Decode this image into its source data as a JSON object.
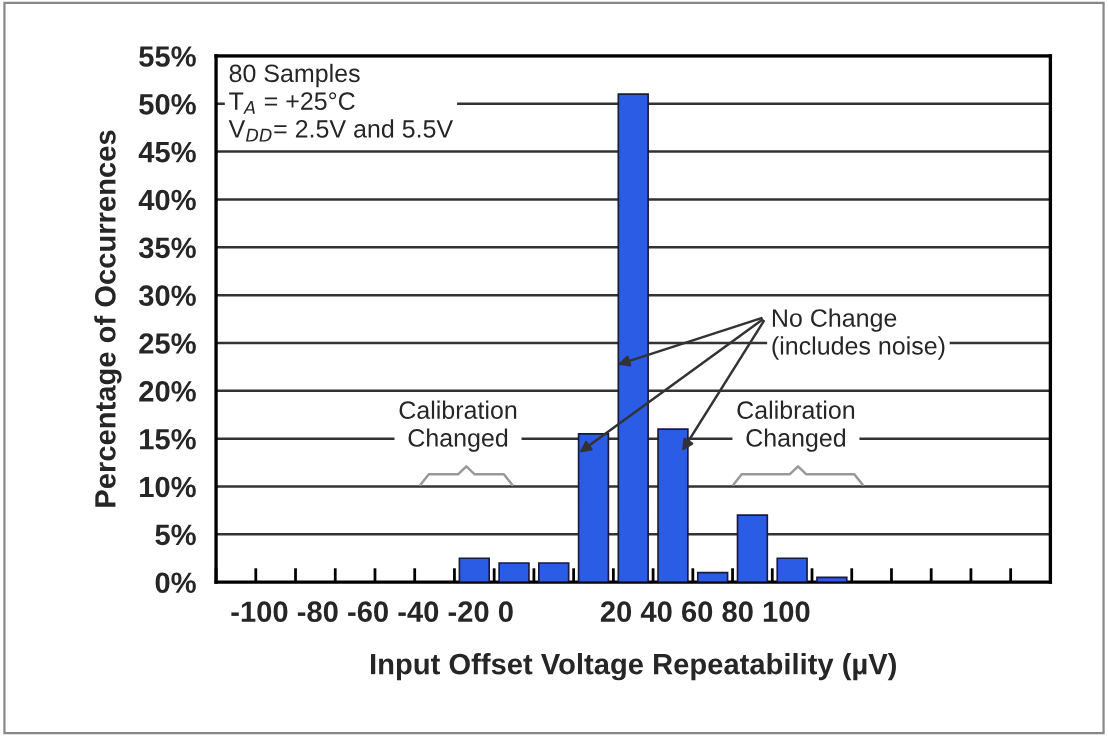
{
  "chart_data": {
    "type": "bar",
    "xlabel": "Input Offset Voltage Repeatability (µV)",
    "ylabel": "Percentage of Occurrences",
    "categories": [
      null,
      null,
      null,
      null,
      null,
      null,
      null,
      null,
      null,
      null,
      null,
      null,
      null,
      null,
      null,
      null,
      null,
      null,
      null,
      null,
      null
    ],
    "values": [
      null,
      null,
      null,
      null,
      null,
      null,
      2.5,
      2,
      2,
      15.5,
      51,
      16,
      1,
      7,
      2.5,
      0.5,
      null,
      null,
      null,
      null,
      null
    ],
    "color": "#2b5ce6",
    "ylim": [
      0,
      55
    ],
    "yticks": [
      {
        "value": 0,
        "label": "0%"
      },
      {
        "value": 5,
        "label": "5%"
      },
      {
        "value": 10,
        "label": "10%"
      },
      {
        "value": 15,
        "label": "15%"
      },
      {
        "value": 20,
        "label": "20%"
      },
      {
        "value": 25,
        "label": "25%"
      },
      {
        "value": 30,
        "label": "30%"
      },
      {
        "value": 35,
        "label": "35%"
      },
      {
        "value": 40,
        "label": "40%"
      },
      {
        "value": 45,
        "label": "45%"
      },
      {
        "value": 50,
        "label": "50%"
      },
      {
        "value": 55,
        "label": "55%"
      }
    ],
    "grid": "y",
    "annotations": [
      "-100 -80 -60 -40 -20 0",
      "20 40 60 80 100",
      "80 Samples\nT$_{A}$ = +25°C\nV$_{DD}$= 2.5V and 5.5V",
      "No Change\n(includes noise)",
      "Calibration\nChanged",
      "Calibration\nChanged"
    ]
  }
}
